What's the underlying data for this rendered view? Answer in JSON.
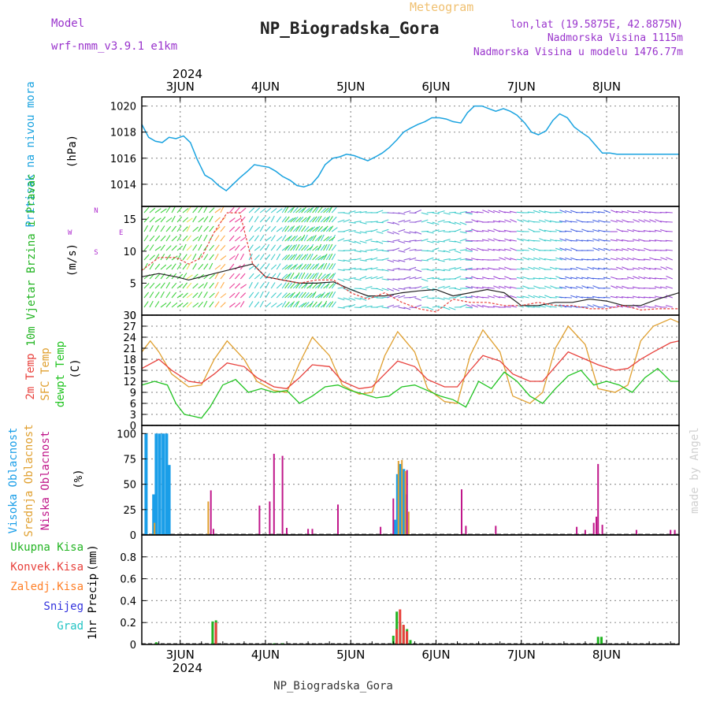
{
  "header": {
    "model_label": "Model",
    "model_name": "wrf-nmm_v3.9.1 e1km",
    "meteogram": "Meteogram",
    "station": "NP_Biogradska_Gora",
    "lonlat": "lon,lat (19.5875E, 42.8875N)",
    "elevation": "Nadmorska Visina 1115m",
    "model_elevation": "Nadmorska Visina u modelu 1476.77m",
    "footer_station": "NP_Biogradska_Gora",
    "watermark": "made by Angel",
    "year_top": "2024",
    "year_bottom": "2024"
  },
  "colors": {
    "pressure": "#1aa3e0",
    "temp2m": "#e8413c",
    "sfc": "#e0a030",
    "dewpt": "#22c422",
    "high_cloud": "#1a9ee8",
    "mid_cloud": "#e0a030",
    "low_cloud": "#c0178a",
    "precip_total": "#22b422",
    "precip_conv": "#e8413c",
    "precip_frozen": "#ff7f27",
    "precip_snow": "#3333dd",
    "precip_hail": "#22c4c4",
    "wind_purple": "#b030d0",
    "title_purple": "#9933cc",
    "meteogram_orange": "#f0c070"
  },
  "chart_data": [
    {
      "type": "line",
      "panel": "pressure",
      "ylabel": "Pritisak na nivou mora",
      "unit": "(hPa)",
      "x_day_labels": [
        "3JUN",
        "4JUN",
        "5JUN",
        "6JUN",
        "7JUN",
        "8JUN"
      ],
      "x_unit": "days since 2024-06-02 00:00",
      "xlim": [
        0.55,
        6.85
      ],
      "ylim": [
        1012.3,
        1020.7
      ],
      "yticks": [
        1014,
        1016,
        1018,
        1020
      ],
      "series": [
        {
          "name": "Pritisak na nivou mora",
          "x": [
            0.55,
            0.63,
            0.71,
            0.79,
            0.87,
            0.95,
            1.04,
            1.12,
            1.2,
            1.29,
            1.37,
            1.45,
            1.54,
            1.62,
            1.7,
            1.79,
            1.87,
            1.95,
            2.04,
            2.12,
            2.2,
            2.29,
            2.37,
            2.45,
            2.54,
            2.62,
            2.7,
            2.79,
            2.87,
            2.95,
            3.04,
            3.12,
            3.2,
            3.29,
            3.37,
            3.45,
            3.54,
            3.62,
            3.7,
            3.79,
            3.87,
            3.95,
            4.04,
            4.12,
            4.2,
            4.29,
            4.37,
            4.45,
            4.54,
            4.62,
            4.7,
            4.79,
            4.87,
            4.95,
            5.04,
            5.12,
            5.2,
            5.29,
            5.37,
            5.45,
            5.54,
            5.62,
            5.7,
            5.79,
            5.87,
            5.95,
            6.04,
            6.12,
            6.2,
            6.29,
            6.37,
            6.45,
            6.54,
            6.62,
            6.7,
            6.79,
            6.85
          ],
          "y": [
            1018.6,
            1017.6,
            1017.3,
            1017.2,
            1017.6,
            1017.5,
            1017.7,
            1017.2,
            1015.9,
            1014.7,
            1014.4,
            1013.9,
            1013.5,
            1014.0,
            1014.5,
            1015.0,
            1015.5,
            1015.4,
            1015.3,
            1015.0,
            1014.6,
            1014.3,
            1013.9,
            1013.8,
            1014.0,
            1014.6,
            1015.5,
            1016.0,
            1016.1,
            1016.3,
            1016.2,
            1016.0,
            1015.8,
            1016.1,
            1016.4,
            1016.8,
            1017.4,
            1018.0,
            1018.3,
            1018.6,
            1018.8,
            1019.1,
            1019.1,
            1019.0,
            1018.8,
            1018.7,
            1019.5,
            1020.0,
            1020.0,
            1019.8,
            1019.6,
            1019.8,
            1019.6,
            1019.3,
            1018.7,
            1018.0,
            1017.8,
            1018.1,
            1018.9,
            1019.4,
            1019.1,
            1018.4,
            1018.0,
            1017.6,
            1017.0,
            1016.4,
            1016.4,
            1016.3,
            1016.3,
            1016.3,
            1016.3,
            1016.3,
            1016.3,
            1016.3,
            1016.3,
            1016.3,
            1016.3
          ]
        }
      ]
    },
    {
      "type": "line",
      "panel": "wind",
      "ylabel": "10m Vjetar Brzina i Pravac",
      "unit": "(m/s)",
      "compass": {
        "n": "N",
        "s": "S",
        "e": "E",
        "w": "W"
      },
      "xlim": [
        0.55,
        6.85
      ],
      "ylim": [
        0,
        17
      ],
      "yticks": [
        0,
        5,
        10,
        15
      ],
      "series": [
        {
          "name": "speed",
          "x": [
            0.55,
            0.75,
            0.95,
            1.1,
            1.25,
            1.4,
            1.55,
            1.7,
            1.85,
            2.0,
            2.2,
            2.4,
            2.6,
            2.8,
            3.0,
            3.2,
            3.4,
            3.6,
            3.8,
            4.0,
            4.2,
            4.4,
            4.6,
            4.8,
            5.0,
            5.2,
            5.4,
            5.6,
            5.8,
            6.0,
            6.2,
            6.4,
            6.6,
            6.85
          ],
          "y": [
            6.0,
            6.5,
            6.0,
            5.5,
            6.0,
            6.5,
            7.0,
            7.5,
            8.0,
            6.0,
            5.5,
            5.0,
            5.0,
            5.2,
            4.0,
            3.0,
            3.0,
            3.5,
            3.8,
            4.0,
            3.0,
            3.5,
            4.0,
            3.5,
            1.5,
            1.5,
            2.0,
            2.0,
            2.5,
            2.2,
            1.5,
            1.5,
            2.5,
            3.5
          ]
        },
        {
          "name": "gust",
          "x": [
            0.55,
            0.75,
            0.95,
            1.1,
            1.25,
            1.4,
            1.55,
            1.7,
            1.85,
            2.0,
            2.2,
            2.4,
            2.6,
            2.8,
            3.0,
            3.2,
            3.4,
            3.6,
            3.8,
            4.0,
            4.2,
            4.4,
            4.6,
            4.8,
            5.0,
            5.2,
            5.4,
            5.6,
            5.8,
            6.0,
            6.2,
            6.4,
            6.6,
            6.85
          ],
          "y": [
            7.0,
            9.0,
            9.0,
            8.0,
            9.0,
            13.0,
            16.0,
            16.0,
            8.0,
            6.0,
            5.5,
            5.0,
            5.5,
            5.5,
            3.5,
            2.5,
            3.5,
            2.0,
            1.0,
            0.5,
            2.5,
            2.0,
            2.0,
            1.5,
            1.5,
            2.0,
            1.5,
            1.5,
            1.0,
            1.0,
            1.5,
            0.8,
            1.0,
            1.0
          ]
        }
      ]
    },
    {
      "type": "line",
      "panel": "temperature",
      "labels": [
        "2m Temp",
        "SFC Temp",
        "dewpt Temp"
      ],
      "unit": "(C)",
      "xlim": [
        0.55,
        6.85
      ],
      "ylim": [
        0,
        30
      ],
      "yticks": [
        0,
        3,
        6,
        9,
        12,
        15,
        18,
        21,
        24,
        27,
        30
      ],
      "series": [
        {
          "name": "2m Temp",
          "x": [
            0.55,
            0.75,
            0.9,
            1.1,
            1.25,
            1.4,
            1.55,
            1.75,
            1.9,
            2.1,
            2.25,
            2.4,
            2.55,
            2.75,
            2.9,
            3.1,
            3.25,
            3.4,
            3.55,
            3.75,
            3.9,
            4.1,
            4.25,
            4.4,
            4.55,
            4.75,
            4.9,
            5.1,
            5.25,
            5.4,
            5.55,
            5.75,
            5.9,
            6.1,
            6.25,
            6.4,
            6.55,
            6.75,
            6.85
          ],
          "y": [
            15.5,
            18.0,
            15.0,
            12.0,
            11.5,
            14.0,
            17.0,
            16.0,
            13.0,
            10.5,
            10.0,
            13.0,
            16.5,
            16.0,
            12.0,
            10.0,
            10.5,
            14.0,
            17.5,
            16.0,
            12.5,
            10.5,
            10.5,
            15.0,
            19.0,
            17.5,
            14.0,
            12.0,
            12.0,
            16.0,
            20.0,
            18.0,
            16.5,
            15.0,
            15.5,
            18.0,
            20.0,
            22.5,
            23.0
          ]
        },
        {
          "name": "SFC Temp",
          "x": [
            0.55,
            0.65,
            0.75,
            0.9,
            1.1,
            1.25,
            1.4,
            1.55,
            1.75,
            1.9,
            2.1,
            2.25,
            2.4,
            2.55,
            2.75,
            2.9,
            3.1,
            3.25,
            3.4,
            3.55,
            3.75,
            3.9,
            4.1,
            4.25,
            4.4,
            4.55,
            4.75,
            4.9,
            5.1,
            5.25,
            5.4,
            5.55,
            5.75,
            5.9,
            6.1,
            6.25,
            6.4,
            6.55,
            6.75,
            6.85
          ],
          "y": [
            20.0,
            23.0,
            20.0,
            14.0,
            10.5,
            11.0,
            18.0,
            23.0,
            18.0,
            12.0,
            9.5,
            9.0,
            17.0,
            24.0,
            19.0,
            11.0,
            8.5,
            9.0,
            19.0,
            25.5,
            20.0,
            10.0,
            6.5,
            6.0,
            19.0,
            26.0,
            20.0,
            8.0,
            6.0,
            9.0,
            21.0,
            27.0,
            22.0,
            10.0,
            9.0,
            11.0,
            23.0,
            27.0,
            29.0,
            28.0
          ]
        },
        {
          "name": "dewpt Temp",
          "x": [
            0.55,
            0.7,
            0.85,
            0.95,
            1.05,
            1.15,
            1.25,
            1.35,
            1.5,
            1.65,
            1.8,
            1.95,
            2.1,
            2.25,
            2.4,
            2.55,
            2.7,
            2.85,
            3.0,
            3.15,
            3.3,
            3.45,
            3.6,
            3.75,
            3.9,
            4.05,
            4.2,
            4.35,
            4.5,
            4.65,
            4.8,
            4.95,
            5.1,
            5.25,
            5.4,
            5.55,
            5.7,
            5.85,
            6.0,
            6.15,
            6.3,
            6.45,
            6.6,
            6.75,
            6.85
          ],
          "y": [
            11.0,
            12.0,
            11.0,
            6.0,
            3.0,
            2.5,
            2.0,
            5.0,
            11.0,
            12.5,
            9.0,
            10.0,
            9.0,
            9.5,
            6.0,
            8.0,
            10.5,
            11.0,
            9.5,
            8.5,
            7.5,
            8.0,
            10.5,
            11.0,
            9.5,
            8.0,
            7.0,
            5.0,
            12.0,
            10.0,
            14.5,
            12.0,
            8.0,
            6.0,
            10.0,
            13.5,
            15.0,
            11.0,
            12.0,
            11.0,
            9.0,
            13.0,
            15.5,
            12.0,
            12.0
          ]
        }
      ]
    },
    {
      "type": "bar",
      "panel": "clouds",
      "labels": [
        "Visoka Oblacnost",
        "Srednja Oblacnost",
        "Niska Oblacnost"
      ],
      "unit": "(%)",
      "xlim": [
        0.55,
        6.85
      ],
      "ylim": [
        0,
        108
      ],
      "yticks": [
        0,
        25,
        50,
        75,
        100
      ],
      "series": [
        {
          "name": "Visoka Oblacnost",
          "x": [
            0.6,
            0.69,
            0.72,
            0.76,
            0.8,
            0.84,
            0.87,
            3.52,
            3.55,
            3.58,
            3.62,
            3.65
          ],
          "y": [
            100,
            40,
            100,
            100,
            100,
            100,
            69,
            15,
            60,
            70,
            65,
            40
          ]
        },
        {
          "name": "Srednja Oblacnost",
          "x": [
            0.7,
            1.33,
            3.56,
            3.6,
            3.64,
            3.68
          ],
          "y": [
            12,
            33,
            73,
            74,
            63,
            23
          ]
        },
        {
          "name": "Niska Oblacnost",
          "x": [
            1.36,
            1.39,
            1.93,
            2.05,
            2.1,
            2.2,
            2.25,
            2.5,
            2.55,
            2.85,
            3.35,
            3.5,
            3.66,
            4.3,
            4.35,
            4.7,
            5.65,
            5.75,
            5.85,
            5.88,
            5.9,
            5.95,
            6.35,
            6.75,
            6.8
          ],
          "y": [
            44,
            6,
            29,
            33,
            80,
            78,
            7,
            6,
            6,
            30,
            8,
            36,
            64,
            45,
            9,
            9,
            8,
            5,
            12,
            18,
            70,
            10,
            5,
            5,
            5
          ]
        }
      ]
    },
    {
      "type": "bar",
      "panel": "precip",
      "ylabel": "1hr Precip",
      "unit": "(mm)",
      "legend": [
        "Ukupna Kisa",
        "Konvek.Kisa",
        "Zaledj.Kisa",
        "Snijeg",
        "Grad"
      ],
      "xlim": [
        0.55,
        6.85
      ],
      "ylim": [
        0,
        1.0
      ],
      "yticks": [
        0,
        0.2,
        0.4,
        0.6,
        0.8
      ],
      "series": [
        {
          "name": "Ukupna Kisa",
          "x": [
            0.72,
            1.38,
            1.42,
            2.1,
            2.2,
            3.5,
            3.54,
            3.58,
            3.62,
            3.66,
            3.7,
            5.9,
            5.94
          ],
          "y": [
            0.02,
            0.21,
            0.22,
            0.01,
            0.01,
            0.08,
            0.3,
            0.2,
            0.17,
            0.14,
            0.04,
            0.07,
            0.07
          ]
        },
        {
          "name": "Konvek.Kisa",
          "x": [
            1.4,
            3.52,
            3.56,
            3.6,
            3.64
          ],
          "y": [
            0.2,
            0.14,
            0.32,
            0.18,
            0.12
          ]
        }
      ]
    }
  ]
}
